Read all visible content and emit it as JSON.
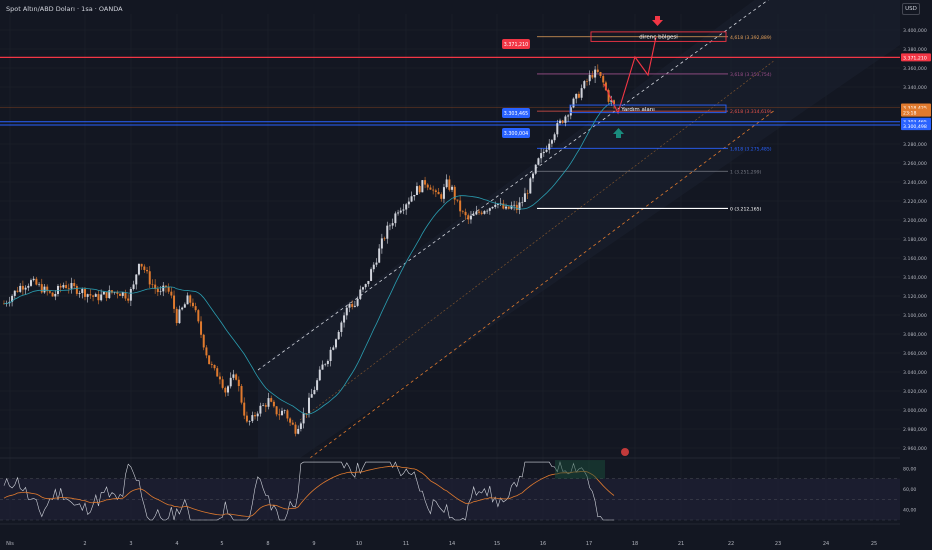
{
  "header": {
    "title": "Spot Altın/ABD Doları · 1sa · OANDA",
    "currency_button": "USD"
  },
  "colors": {
    "background": "#131722",
    "up": "#d1d4dc",
    "down": "#e07a2e",
    "ma": "#2a9db0",
    "red_line": "#f23645",
    "blue_line": "#2962ff",
    "fib_orange": "#e5a15a",
    "rsi": "#d1d4dc",
    "rsi_ma": "#e07a2e"
  },
  "chart_data": {
    "type": "candlestick",
    "symbol": "Spot Altın/ABD Doları",
    "interval": "1sa",
    "source": "OANDA",
    "y_axis": {
      "range": [
        2950,
        3410
      ],
      "ticks": [
        "3.400,000",
        "3.380,000",
        "3.360,000",
        "3.340,000",
        "3.320,000",
        "3.300,000",
        "3.280,000",
        "3.260,000",
        "3.240,000",
        "3.220,000",
        "3.200,000",
        "3.180,000",
        "3.160,000",
        "3.140,000",
        "3.120,000",
        "3.100,000",
        "3.080,000",
        "3.060,000",
        "3.040,000",
        "3.020,000",
        "3.000,000",
        "2.980,000",
        "2.960,000"
      ]
    },
    "x_axis": {
      "ticks": [
        "Nis",
        "2",
        "3",
        "4",
        "5",
        "8",
        "9",
        "10",
        "11",
        "14",
        "15",
        "16",
        "17",
        "18",
        "21",
        "22",
        "23",
        "24",
        "25"
      ]
    },
    "price_path": [
      [
        0,
        3112
      ],
      [
        3,
        3130
      ],
      [
        5,
        3135
      ],
      [
        7,
        3128
      ],
      [
        9,
        3120
      ],
      [
        11,
        3132
      ],
      [
        13,
        3128
      ],
      [
        15,
        3124
      ],
      [
        17,
        3118
      ],
      [
        19,
        3122
      ],
      [
        21,
        3125
      ],
      [
        23,
        3120
      ],
      [
        24,
        3130
      ],
      [
        25,
        3158
      ],
      [
        26,
        3148
      ],
      [
        27,
        3136
      ],
      [
        28,
        3128
      ],
      [
        29,
        3122
      ],
      [
        30,
        3130
      ],
      [
        31,
        3118
      ],
      [
        32,
        3096
      ],
      [
        33,
        3106
      ],
      [
        34,
        3116
      ],
      [
        35,
        3112
      ],
      [
        36,
        3090
      ],
      [
        37,
        3070
      ],
      [
        38,
        3050
      ],
      [
        39,
        3040
      ],
      [
        40,
        3036
      ],
      [
        41,
        3020
      ],
      [
        42,
        3030
      ],
      [
        43,
        3036
      ],
      [
        44,
        3010
      ],
      [
        45,
        2985
      ],
      [
        46,
        2990
      ],
      [
        47,
        3000
      ],
      [
        48,
        3004
      ],
      [
        49,
        3010
      ],
      [
        50,
        3000
      ],
      [
        51,
        2996
      ],
      [
        52,
        3000
      ],
      [
        53,
        2986
      ],
      [
        54,
        2980
      ],
      [
        55,
        2990
      ],
      [
        56,
        3000
      ],
      [
        57,
        3016
      ],
      [
        58,
        3030
      ],
      [
        59,
        3046
      ],
      [
        60,
        3056
      ],
      [
        61,
        3070
      ],
      [
        62,
        3086
      ],
      [
        63,
        3100
      ],
      [
        64,
        3112
      ],
      [
        65,
        3110
      ],
      [
        66,
        3124
      ],
      [
        67,
        3130
      ],
      [
        68,
        3146
      ],
      [
        69,
        3160
      ],
      [
        70,
        3176
      ],
      [
        71,
        3190
      ],
      [
        72,
        3200
      ],
      [
        73,
        3212
      ],
      [
        74,
        3216
      ],
      [
        75,
        3222
      ],
      [
        76,
        3230
      ],
      [
        77,
        3234
      ],
      [
        78,
        3240
      ],
      [
        79,
        3236
      ],
      [
        80,
        3225
      ],
      [
        81,
        3226
      ],
      [
        82,
        3238
      ],
      [
        83,
        3232
      ],
      [
        84,
        3216
      ],
      [
        85,
        3206
      ],
      [
        86,
        3200
      ],
      [
        87,
        3204
      ],
      [
        88,
        3208
      ],
      [
        89,
        3212
      ],
      [
        90,
        3214
      ],
      [
        91,
        3220
      ],
      [
        92,
        3214
      ],
      [
        93,
        3210
      ],
      [
        94,
        3214
      ],
      [
        95,
        3212
      ],
      [
        96,
        3220
      ],
      [
        97,
        3232
      ],
      [
        98,
        3246
      ],
      [
        99,
        3262
      ],
      [
        100,
        3272
      ],
      [
        101,
        3284
      ],
      [
        102,
        3294
      ],
      [
        103,
        3302
      ],
      [
        104,
        3310
      ],
      [
        105,
        3320
      ],
      [
        106,
        3328
      ],
      [
        107,
        3338
      ],
      [
        108,
        3346
      ],
      [
        109,
        3354
      ],
      [
        110,
        3354
      ],
      [
        111,
        3344
      ],
      [
        112,
        3328
      ],
      [
        113,
        3320
      ]
    ],
    "levels": [
      {
        "label": "3.371,210",
        "price": 3371.21,
        "color": "#f23645",
        "tag": true
      },
      {
        "label": "3.303,465",
        "price": 3303.465,
        "color": "#2962ff",
        "tag": true
      },
      {
        "label": "3.300,004",
        "price": 3300.004,
        "color": "#2962ff",
        "tag": true
      },
      {
        "label": "3.300,498",
        "price": 3300.498,
        "color": "#2962ff",
        "tag": false
      },
      {
        "label": "3.318,425",
        "price": 3318.425,
        "color": "#e07a2e",
        "tag": false
      }
    ],
    "fib_levels": [
      {
        "label": "4,618 (3.392,889)",
        "price": 3392.889,
        "color": "#e5a15a"
      },
      {
        "label": "3,618 (3.353,754)",
        "price": 3353.754,
        "color": "#9c4f8a"
      },
      {
        "label": "2,618 (3.314,619)",
        "price": 3314.619,
        "color": "#e5534b"
      },
      {
        "label": "1,618 (3.275,485)",
        "price": 3275.485,
        "color": "#2962ff"
      },
      {
        "label": "1 (3.251,299)",
        "price": 3251.299,
        "color": "#787b86"
      },
      {
        "label": "0 (3.212,165)",
        "price": 3212.165,
        "color": "#ffffff"
      }
    ],
    "right_axis_tags": [
      {
        "label": "3.371,210",
        "price": 3371.21,
        "color": "#f23645"
      },
      {
        "label": "3.318,425",
        "price": 3318.425,
        "color": "#e07a2e"
      },
      {
        "label": "23:18",
        "price": 3313.0,
        "color": "#e07a2e"
      },
      {
        "label": "3.303,465",
        "price": 3303.465,
        "color": "#2962ff"
      },
      {
        "label": "3.300,498",
        "price": 3298.8,
        "color": "#2962ff"
      }
    ],
    "zones": [
      {
        "label": "direnç bölgesi",
        "from": 3388,
        "to": 3398,
        "color": "#f23645"
      },
      {
        "label": "Yardım alanı",
        "from": 3313,
        "to": 3321,
        "color": "#2962ff"
      }
    ],
    "rsi": {
      "ticks": [
        "80,00",
        "60,00",
        "40,00"
      ],
      "range": [
        30,
        90
      ],
      "upper": 70,
      "lower": 30,
      "mid": 50
    }
  }
}
